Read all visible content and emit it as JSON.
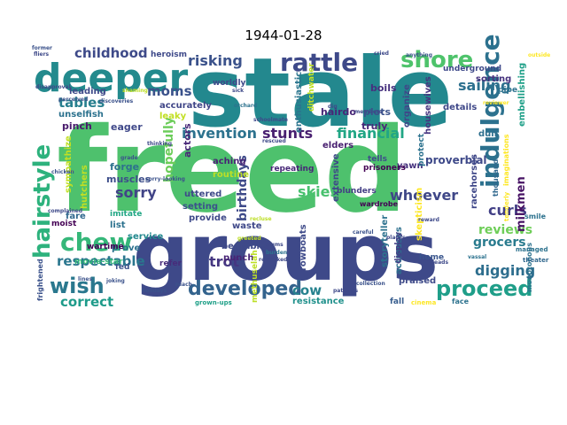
{
  "title": "1944-01-28",
  "words": [
    {
      "text": "freed",
      "color": "#4ec16d"
    },
    {
      "text": "groups",
      "color": "#3e4989"
    },
    {
      "text": "stale",
      "color": "#23888e"
    },
    {
      "text": "deeper",
      "color": "#238a8d"
    },
    {
      "text": "rattle",
      "color": "#3e4989"
    },
    {
      "text": "shore",
      "color": "#4ec36b"
    },
    {
      "text": "indulgence",
      "color": "#2c718e"
    },
    {
      "text": "hairstyle",
      "color": "#2db27d"
    },
    {
      "text": "chew",
      "color": "#35b779"
    },
    {
      "text": "wish",
      "color": "#2a788e"
    },
    {
      "text": "developed",
      "color": "#33638d"
    },
    {
      "text": "proceed",
      "color": "#1f9e89"
    },
    {
      "text": "childhood",
      "color": "#3e4a89"
    },
    {
      "text": "risking",
      "color": "#3b528b"
    },
    {
      "text": "sailing",
      "color": "#2d708e"
    },
    {
      "text": "tables",
      "color": "#277f8e"
    },
    {
      "text": "stunts",
      "color": "#481f70"
    },
    {
      "text": "financial",
      "color": "#21a685"
    },
    {
      "text": "invention",
      "color": "#2c728e"
    },
    {
      "text": "whoever",
      "color": "#3f4788"
    },
    {
      "text": "skies",
      "color": "#48c16e"
    },
    {
      "text": "reviews",
      "color": "#6ece58"
    },
    {
      "text": "curls",
      "color": "#424086"
    },
    {
      "text": "digging",
      "color": "#2e6e8e"
    },
    {
      "text": "grocers",
      "color": "#297b8e"
    },
    {
      "text": "respectable",
      "color": "#2a768e"
    },
    {
      "text": "sorry",
      "color": "#414487"
    },
    {
      "text": "birthdays",
      "color": "#3e4a89"
    },
    {
      "text": "trot",
      "color": "#453781"
    },
    {
      "text": "correct",
      "color": "#1e9b8a"
    },
    {
      "text": "cow",
      "color": "#26828e"
    },
    {
      "text": "hopefully",
      "color": "#6ccd5a"
    },
    {
      "text": "moms",
      "color": "#3b528b"
    },
    {
      "text": "milkmen",
      "color": "#471365"
    },
    {
      "text": "proverbial",
      "color": "#3e4989"
    },
    {
      "text": "actors",
      "color": "#482878"
    },
    {
      "text": "forge",
      "color": "#2d718e"
    },
    {
      "text": "muscles",
      "color": "#3d4e8a"
    },
    {
      "text": "eager",
      "color": "#3f4889"
    },
    {
      "text": "pinch",
      "color": "#481a6c"
    },
    {
      "text": "unselfish",
      "color": "#2c728e"
    },
    {
      "text": "leading",
      "color": "#3e4a89"
    },
    {
      "text": "accurately",
      "color": "#404688"
    },
    {
      "text": "leaky",
      "color": "#c2df23"
    },
    {
      "text": "boils",
      "color": "#46307e"
    },
    {
      "text": "plots",
      "color": "#3b528b"
    },
    {
      "text": "truly",
      "color": "#482979"
    },
    {
      "text": "organize",
      "color": "#3f4788"
    },
    {
      "text": "housewives",
      "color": "#463480"
    },
    {
      "text": "hairdo",
      "color": "#482677"
    },
    {
      "text": "details",
      "color": "#3f4889"
    },
    {
      "text": "sorting",
      "color": "#46327e"
    },
    {
      "text": "underground",
      "color": "#3e4989"
    },
    {
      "text": "embellishing",
      "color": "#1fa088"
    },
    {
      "text": "dull",
      "color": "#2e6f8e"
    },
    {
      "text": "enthusiastic",
      "color": "#2b758e"
    },
    {
      "text": "aching",
      "color": "#482475"
    },
    {
      "text": "elders",
      "color": "#481f70"
    },
    {
      "text": "yawn",
      "color": "#46327e"
    },
    {
      "text": "tells",
      "color": "#3e4c8a"
    },
    {
      "text": "prisoners",
      "color": "#440154"
    },
    {
      "text": "racehorses",
      "color": "#3f4788"
    },
    {
      "text": "thousand",
      "color": "#31688e"
    },
    {
      "text": "uttered",
      "color": "#3e4989"
    },
    {
      "text": "setting",
      "color": "#3b528b"
    },
    {
      "text": "provide",
      "color": "#3e4989"
    },
    {
      "text": "service",
      "color": "#23888e"
    },
    {
      "text": "prove",
      "color": "#2c728e"
    },
    {
      "text": "list",
      "color": "#2c728e"
    },
    {
      "text": "fare",
      "color": "#31688e"
    },
    {
      "text": "wartime",
      "color": "#440154"
    },
    {
      "text": "routine",
      "color": "#bddf26"
    },
    {
      "text": "bearable",
      "color": "#3e4a89"
    },
    {
      "text": "waste",
      "color": "#3f4889"
    },
    {
      "text": "punch",
      "color": "#482475"
    },
    {
      "text": "storyteller",
      "color": "#2c728e"
    },
    {
      "text": "actresses",
      "color": "#2d708e"
    },
    {
      "text": "blunders",
      "color": "#433e85"
    },
    {
      "text": "wardrobe",
      "color": "#440154"
    },
    {
      "text": "skepticism",
      "color": "#fde725"
    },
    {
      "text": "display",
      "color": "#433e85"
    },
    {
      "text": "praised",
      "color": "#3e4a89"
    },
    {
      "text": "resistance",
      "color": "#21918c"
    },
    {
      "text": "extensive",
      "color": "#3e4989"
    },
    {
      "text": "repeating",
      "color": "#482878"
    },
    {
      "text": "rowboats",
      "color": "#3e4a89"
    },
    {
      "text": "home",
      "color": "#39558c"
    },
    {
      "text": "fall",
      "color": "#365c8d"
    },
    {
      "text": "hutchers",
      "color": "#c2df23"
    },
    {
      "text": "sympathize",
      "color": "#c2df23"
    },
    {
      "text": "imitate",
      "color": "#22a785"
    },
    {
      "text": "methuselah",
      "color": "#bddf26"
    },
    {
      "text": "refer",
      "color": "#472c7a"
    },
    {
      "text": "fed",
      "color": "#3b528b"
    },
    {
      "text": "movie-star",
      "color": "#35b779"
    },
    {
      "text": "moist",
      "color": "#440154"
    },
    {
      "text": "ditchwater",
      "color": "#bddf26"
    },
    {
      "text": "protect",
      "color": "#2c728e"
    },
    {
      "text": "heroism",
      "color": "#3e4989"
    },
    {
      "text": "worldly",
      "color": "#3e4989"
    },
    {
      "text": "pipe",
      "color": "#2c728e"
    },
    {
      "text": "imaginations",
      "color": "#fde725"
    },
    {
      "text": "tenderly",
      "color": "#fde725"
    },
    {
      "text": "frightened",
      "color": "#3b528b"
    },
    {
      "text": "monotonous",
      "color": "#2c728e"
    },
    {
      "text": "cinema",
      "color": "#fde725"
    },
    {
      "text": "face",
      "color": "#2c728e"
    },
    {
      "text": "grown-ups",
      "color": "#1fa088"
    },
    {
      "text": "patients",
      "color": "#3e4989"
    },
    {
      "text": "collection",
      "color": "#3b528b"
    },
    {
      "text": "managed",
      "color": "#2c728e"
    },
    {
      "text": "theater",
      "color": "#31688e"
    },
    {
      "text": "vassal",
      "color": "#2c728e"
    },
    {
      "text": "leads",
      "color": "#3e4989"
    },
    {
      "text": "reviewer",
      "color": "#fde725"
    },
    {
      "text": "discoveries",
      "color": "#3b528b"
    },
    {
      "text": "perceived",
      "color": "#3b528b"
    },
    {
      "text": "disapproval",
      "color": "#3e4989"
    },
    {
      "text": "shaming",
      "color": "#bddf26"
    },
    {
      "text": "fliers",
      "color": "#3e4989"
    },
    {
      "text": "outside",
      "color": "#fde725"
    },
    {
      "text": "holidays",
      "color": "#3b528b"
    },
    {
      "text": "reach",
      "color": "#3b528b"
    },
    {
      "text": "burden",
      "color": "#2c728e"
    },
    {
      "text": "greeted",
      "color": "#bddf26"
    },
    {
      "text": "slums",
      "color": "#3e4989"
    },
    {
      "text": "remarked",
      "color": "#3e4989"
    },
    {
      "text": "careful",
      "color": "#3b528b"
    },
    {
      "text": "places",
      "color": "#3e4989"
    },
    {
      "text": "recluse",
      "color": "#bddf26"
    },
    {
      "text": "reward",
      "color": "#3e4989"
    },
    {
      "text": "joking",
      "color": "#3b528b"
    },
    {
      "text": "lines",
      "color": "#3b528b"
    },
    {
      "text": "complained",
      "color": "#3e4989"
    },
    {
      "text": "chicken",
      "color": "#3b528b"
    },
    {
      "text": "grade",
      "color": "#3b528b"
    },
    {
      "text": "smile",
      "color": "#2c728e"
    },
    {
      "text": "former",
      "color": "#3b528b"
    },
    {
      "text": "members",
      "color": "#3e4989"
    },
    {
      "text": "dig",
      "color": "#3e4989"
    },
    {
      "text": "sick",
      "color": "#3e4989"
    },
    {
      "text": "orchard",
      "color": "#2c728e"
    },
    {
      "text": "schoolmate",
      "color": "#3e4989"
    },
    {
      "text": "cried",
      "color": "#3e4989"
    },
    {
      "text": "anything",
      "color": "#3b528b"
    },
    {
      "text": "rescued",
      "color": "#3e4989"
    },
    {
      "text": "sorry-looking",
      "color": "#3b528b"
    },
    {
      "text": "thinking",
      "color": "#3e4989"
    }
  ]
}
